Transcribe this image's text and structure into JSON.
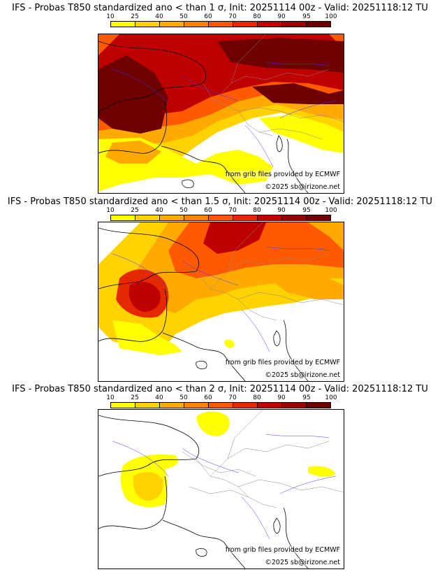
{
  "colorbar": {
    "labels": [
      "10",
      "25",
      "40",
      "50",
      "60",
      "70",
      "80",
      "90",
      "95",
      "100"
    ],
    "colors": [
      "#ffff00",
      "#ffd200",
      "#ffaa00",
      "#ff8200",
      "#ff5a00",
      "#e62800",
      "#be0000",
      "#960000",
      "#6e0000"
    ]
  },
  "panels": [
    {
      "title": "IFS - Probas T850  standardized ano < than 1 σ, Init: 20251114 00z - Valid: 20251118:12 TU",
      "source_text": "from grib files provided by ECMWF",
      "copyright_text": "©2025 sb@irizone.net"
    },
    {
      "title": "IFS - Probas T850  standardized ano < than 1.5 σ, Init: 20251114 00z - Valid: 20251118:12 TU",
      "source_text": "from grib files provided by ECMWF",
      "copyright_text": "©2025 sb@irizone.net"
    },
    {
      "title": "IFS - Probas T850  standardized ano < than 2 σ, Init: 20251114 00z - Valid: 20251118:12 TU",
      "source_text": "from grib files provided by ECMWF",
      "copyright_text": "©2025 sb@irizone.net"
    }
  ]
}
